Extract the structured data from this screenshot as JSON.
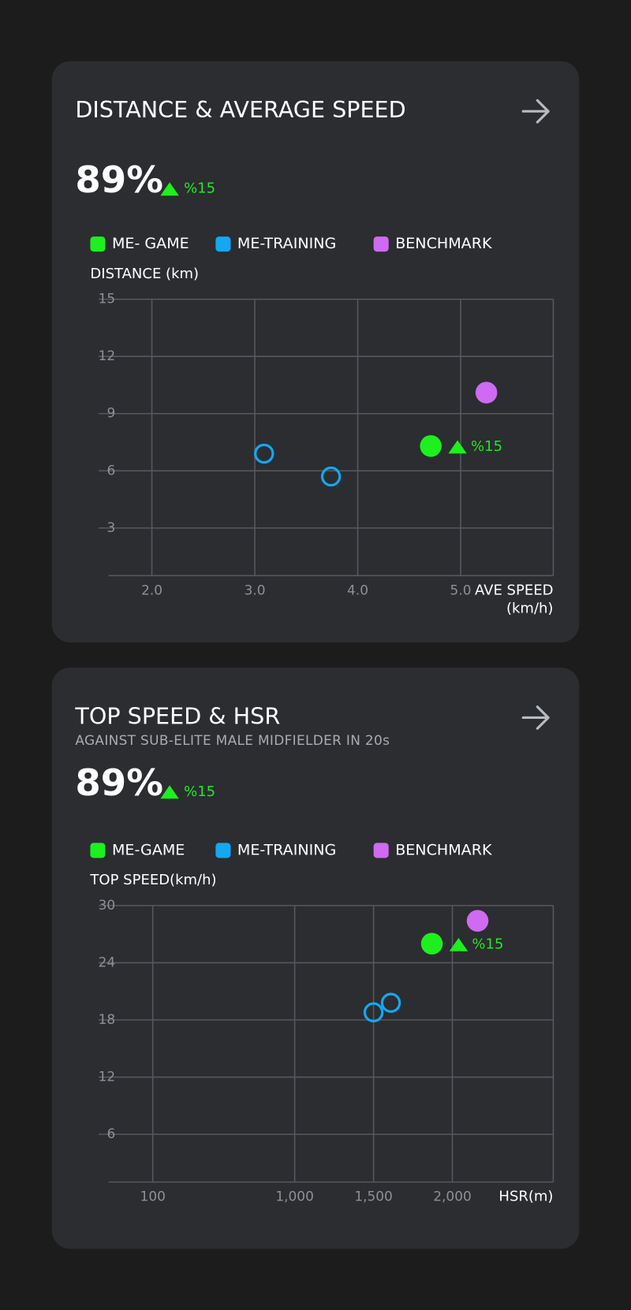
{
  "chart_data": [
    {
      "type": "scatter",
      "title": "DISTANCE & AVERAGE SPEED",
      "headline": "89%",
      "change": "%15",
      "xlabel": "AVE SPEED (km/h)",
      "ylabel": "DISTANCE (km)",
      "xlim": [
        1.58,
        5.9
      ],
      "ylim": [
        0.5,
        15
      ],
      "xticks": [
        {
          "value": 2,
          "label": "2.0"
        },
        {
          "value": 3,
          "label": "3.0"
        },
        {
          "value": 4,
          "label": "4.0"
        },
        {
          "value": 5,
          "label": "5.0"
        }
      ],
      "yticks": [
        3,
        6,
        9,
        12,
        15
      ],
      "grid": true,
      "series": [
        {
          "name": "ME- GAME",
          "color": "#1df01d",
          "marker": "filled",
          "x": [
            4.71
          ],
          "values": [
            7.3
          ]
        },
        {
          "name": "ME-TRAINING",
          "color": "#12a9f2",
          "marker": "hollow",
          "x": [
            3.09,
            3.74
          ],
          "values": [
            6.9,
            5.7
          ]
        },
        {
          "name": "BENCHMARK",
          "color": "#cf6af2",
          "marker": "filled",
          "x": [
            5.25
          ],
          "values": [
            10.1
          ]
        }
      ],
      "annotation": "%15"
    },
    {
      "type": "scatter",
      "title": "TOP SPEED & HSR",
      "subtitle": "AGAINST SUB-ELITE MALE MIDFIELDER IN 20s",
      "headline": "89%",
      "change": "%15",
      "xlabel": "HSR(m)",
      "ylabel": "TOP SPEED(km/h)",
      "xlim": [
        -180,
        2640
      ],
      "ylim": [
        1,
        30
      ],
      "xticks": [
        {
          "value": 100,
          "label": "100"
        },
        {
          "value": 1000,
          "label": "1,000"
        },
        {
          "value": 1500,
          "label": "1,500"
        },
        {
          "value": 2000,
          "label": "2,000"
        }
      ],
      "yticks": [
        6,
        12,
        18,
        24,
        30
      ],
      "grid": true,
      "series": [
        {
          "name": "ME-GAME",
          "color": "#1df01d",
          "marker": "filled",
          "x": [
            1870
          ],
          "values": [
            26.0
          ]
        },
        {
          "name": "ME-TRAINING",
          "color": "#12a9f2",
          "marker": "hollow",
          "x": [
            1500,
            1610
          ],
          "values": [
            18.8,
            19.8
          ]
        },
        {
          "name": "BENCHMARK",
          "color": "#cf6af2",
          "marker": "filled",
          "x": [
            2160
          ],
          "values": [
            28.4
          ]
        }
      ],
      "annotation": "%15"
    }
  ]
}
